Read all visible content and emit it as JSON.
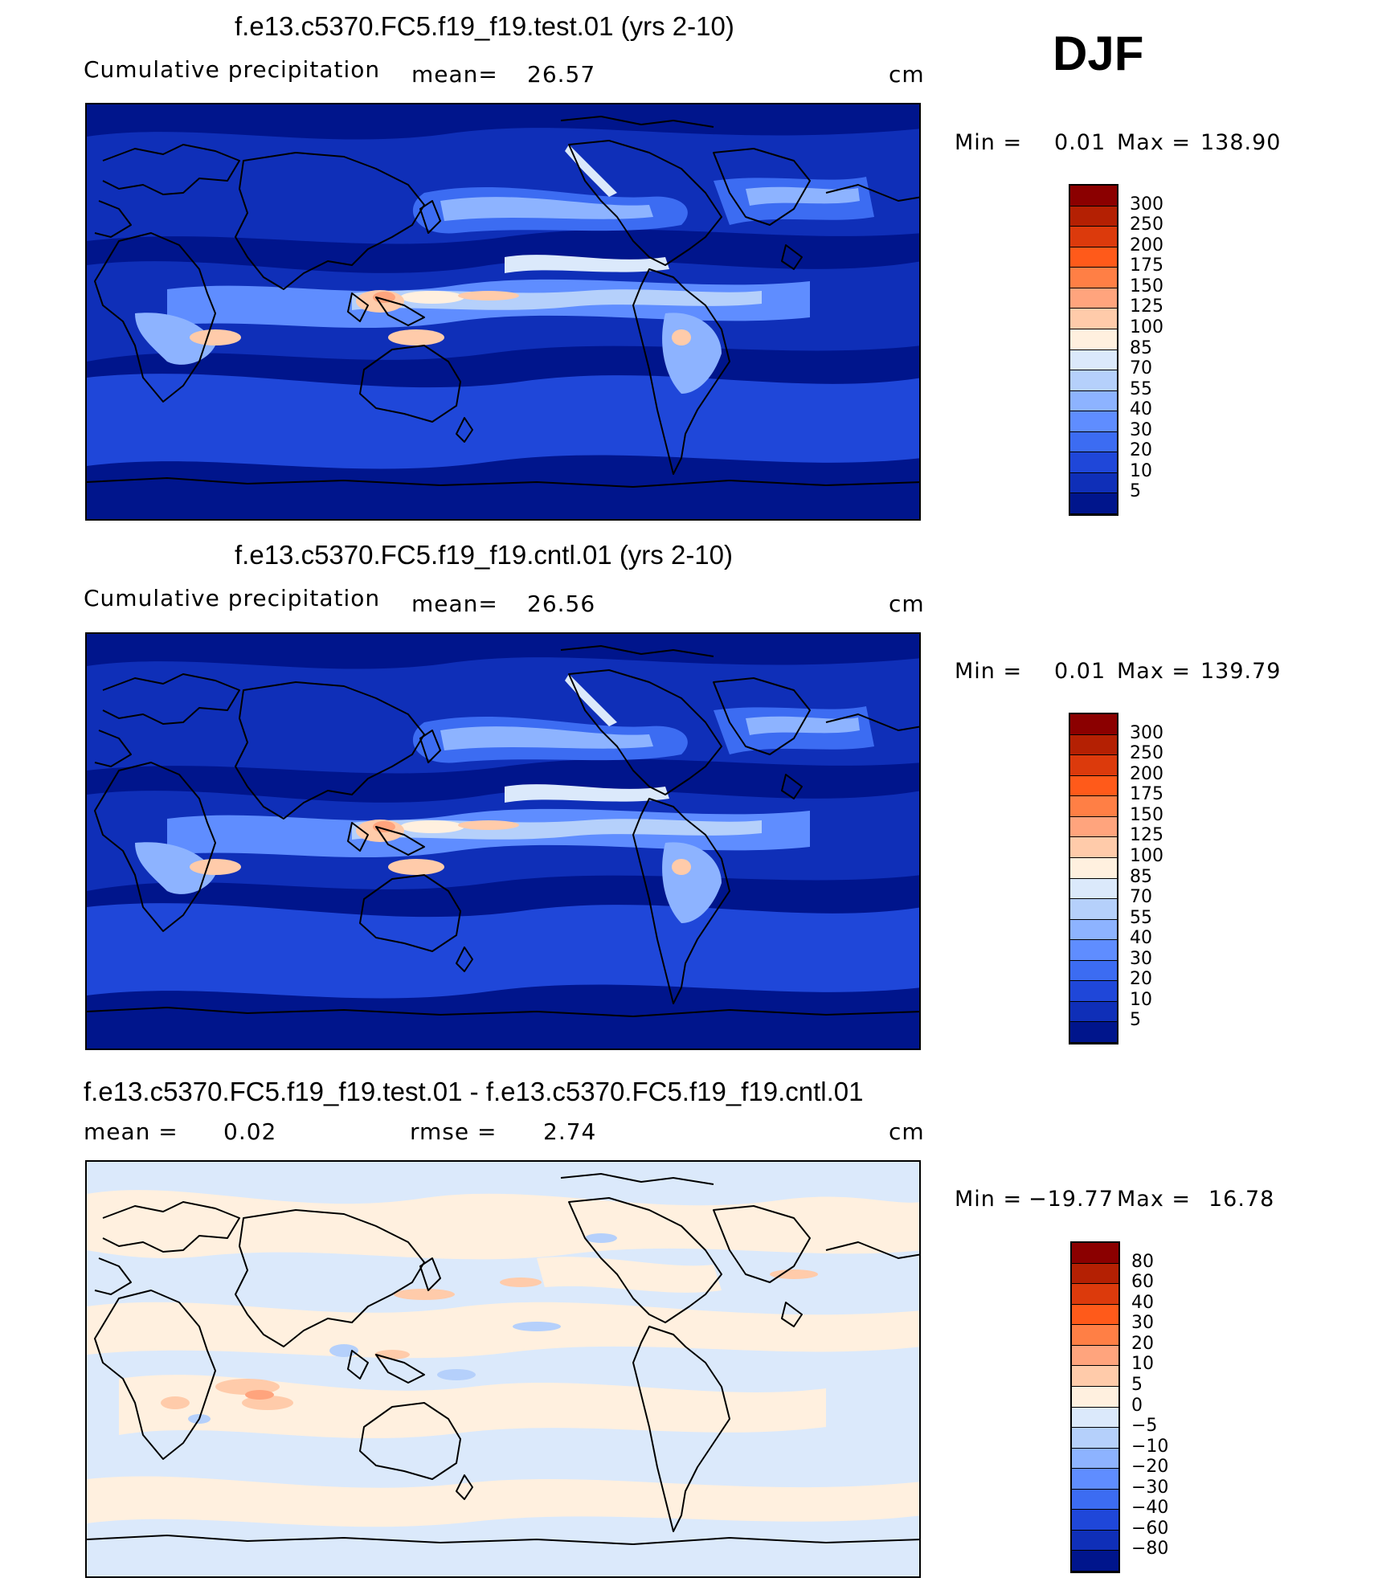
{
  "season": "DJF",
  "panels": [
    {
      "id": "test",
      "title": "f.e13.c5370.FC5.f19_f19.test.01 (yrs 2-10)",
      "left_label": "Cumulative  precipitation",
      "mean_label": "mean=",
      "mean_value": "26.57",
      "units": "cm",
      "min_label": "Min  =",
      "min_value": "0.01",
      "max_label": "Max  =",
      "max_value": "138.90",
      "colorbar": {
        "labels": [
          "300",
          "250",
          "200",
          "175",
          "150",
          "125",
          "100",
          "85",
          "70",
          "55",
          "40",
          "30",
          "20",
          "10",
          "5"
        ],
        "colors": [
          "#8b0000",
          "#b42003",
          "#dc3a0c",
          "#ff5a1a",
          "#ff7f45",
          "#ffa47d",
          "#ffcbaa",
          "#fff0df",
          "#dbe9fb",
          "#b5d0fb",
          "#8db3ff",
          "#5f8dff",
          "#3c6cf2",
          "#1f47d9",
          "#0f2fb8",
          "#00158c"
        ]
      }
    },
    {
      "id": "cntl",
      "title": "f.e13.c5370.FC5.f19_f19.cntl.01 (yrs 2-10)",
      "left_label": "Cumulative  precipitation",
      "mean_label": "mean=",
      "mean_value": "26.56",
      "units": "cm",
      "min_label": "Min  =",
      "min_value": "0.01",
      "max_label": "Max  =",
      "max_value": "139.79",
      "colorbar": {
        "labels": [
          "300",
          "250",
          "200",
          "175",
          "150",
          "125",
          "100",
          "85",
          "70",
          "55",
          "40",
          "30",
          "20",
          "10",
          "5"
        ],
        "colors": [
          "#8b0000",
          "#b42003",
          "#dc3a0c",
          "#ff5a1a",
          "#ff7f45",
          "#ffa47d",
          "#ffcbaa",
          "#fff0df",
          "#dbe9fb",
          "#b5d0fb",
          "#8db3ff",
          "#5f8dff",
          "#3c6cf2",
          "#1f47d9",
          "#0f2fb8",
          "#00158c"
        ]
      }
    },
    {
      "id": "diff",
      "title": "f.e13.c5370.FC5.f19_f19.test.01 - f.e13.c5370.FC5.f19_f19.cntl.01",
      "mean_label": "mean  =",
      "mean_value": "0.02",
      "rmse_label": "rmse  =",
      "rmse_value": "2.74",
      "units": "cm",
      "min_label": "Min  =",
      "min_value": "−19.77",
      "max_label": "Max  =",
      "max_value": "16.78",
      "colorbar": {
        "labels": [
          "80",
          "60",
          "40",
          "30",
          "20",
          "10",
          "5",
          "0",
          "−5",
          "−10",
          "−20",
          "−30",
          "−40",
          "−60",
          "−80"
        ],
        "colors": [
          "#8b0000",
          "#b42003",
          "#dc3a0c",
          "#ff5a1a",
          "#ff7f45",
          "#ffa47d",
          "#ffcbaa",
          "#fff0df",
          "#dbe9fb",
          "#b5d0fb",
          "#8db3ff",
          "#5f8dff",
          "#3c6cf2",
          "#1f47d9",
          "#0f2fb8",
          "#00158c"
        ]
      }
    }
  ]
}
